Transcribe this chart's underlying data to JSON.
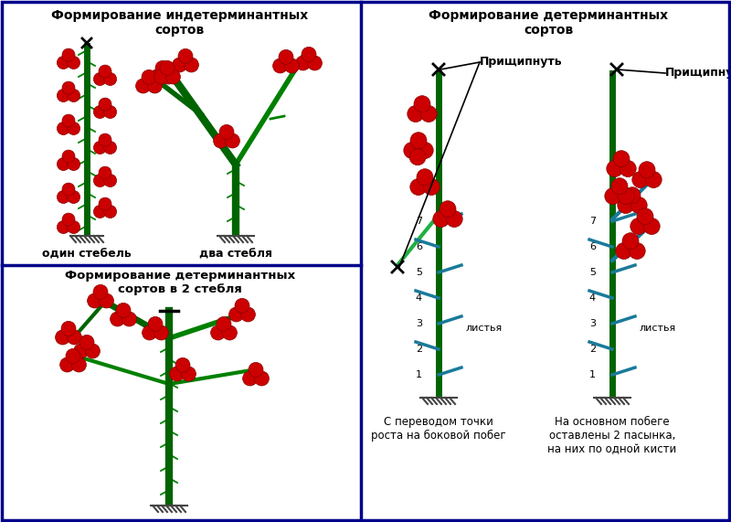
{
  "bg_color": "#ffffff",
  "border_color": "#00008B",
  "stem_color": "#006400",
  "stem_color2": "#008000",
  "fruit_color": "#CC0000",
  "fruit_edge": "#8B0000",
  "branch_color": "#20B040",
  "pasync_color": "#1a7a9a",
  "title1": "Формирование индетерминантных\nсортов",
  "title2": "Формирование детерминантных\nсортов",
  "title3": "Формирование детерминантных\nсортов в 2 стебля",
  "label_one": "один стебель",
  "label_two": "два стебля",
  "label_pricip": "Прищипнуть",
  "label_listya": "листья",
  "label_bottom_left": "С переводом точки\nроста на боковой побег",
  "label_bottom_right": "На основном побеге\nоставлены 2 пасынка,\nна них по одной кисти"
}
